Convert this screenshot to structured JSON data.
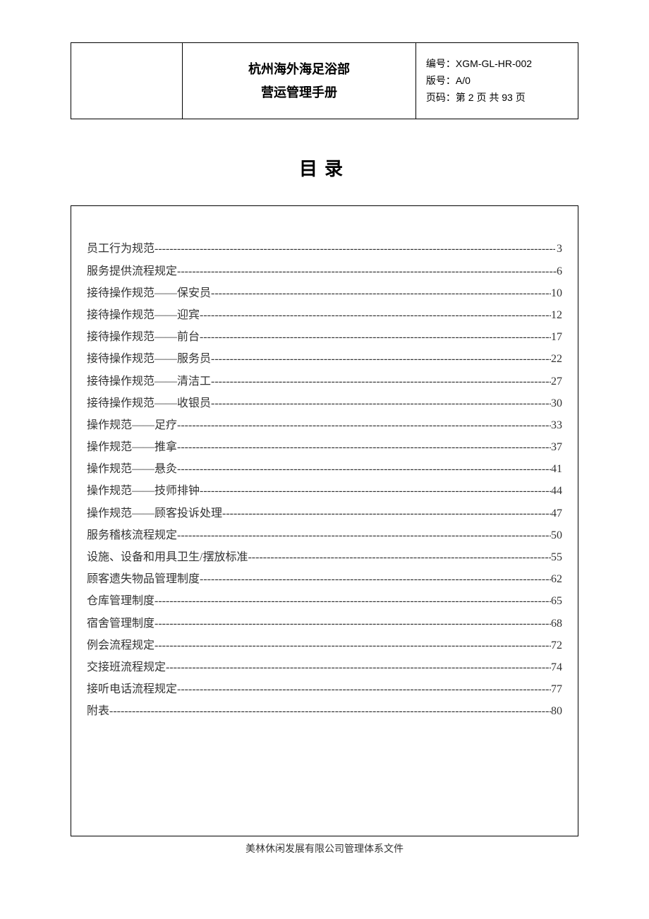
{
  "header": {
    "title_line1": "杭州海外海足浴部",
    "title_line2": "营运管理手册",
    "doc_no_label": "编号：",
    "doc_no_value": "XGM-GL-HR-002",
    "version_label": "版号：",
    "version_value": "A/0",
    "page_label": "页码：",
    "page_value": "第 2 页 共 93 页"
  },
  "toc": {
    "title": "目录",
    "items": [
      {
        "label": "员工行为规范",
        "page": " 3"
      },
      {
        "label": "服务提供流程规定",
        "page": "6"
      },
      {
        "label": "接待操作规范——保安员",
        "page": "10"
      },
      {
        "label": "接待操作规范——迎宾",
        "page": "12"
      },
      {
        "label": "接待操作规范——前台",
        "page": "17"
      },
      {
        "label": "接待操作规范——服务员",
        "page": "22"
      },
      {
        "label": "接待操作规范——清洁工",
        "page": "27"
      },
      {
        "label": "接待操作规范——收银员",
        "page": "30"
      },
      {
        "label": "操作规范——足疗",
        "page": "33"
      },
      {
        "label": "操作规范——推拿",
        "page": "37"
      },
      {
        "label": "操作规范——悬灸",
        "page": "41"
      },
      {
        "label": "操作规范——技师排钟",
        "page": "44"
      },
      {
        "label": "操作规范——顾客投诉处理",
        "page": "47"
      },
      {
        "label": "服务稽核流程规定",
        "page": "50"
      },
      {
        "label": "设施、设备和用具卫生/摆放标准",
        "page": "55"
      },
      {
        "label": "顾客遗失物品管理制度",
        "page": "62"
      },
      {
        "label": "仓库管理制度",
        "page": "65"
      },
      {
        "label": "宿舍管理制度",
        "page": "68"
      },
      {
        "label": "例会流程规定",
        "page": "72"
      },
      {
        "label": "交接班流程规定",
        "page": "74"
      },
      {
        "label": "接听电话流程规定",
        "page": "77"
      },
      {
        "label": "附表",
        "page": "80"
      }
    ]
  },
  "footer": "美林休闲发展有限公司管理体系文件",
  "style": {
    "page_bg": "#ffffff",
    "text_color": "#000000",
    "toc_text_color": "#333333",
    "border_color": "#000000",
    "title_fontsize_pt": 18,
    "meta_fontsize_pt": 14,
    "toc_title_fontsize_pt": 26,
    "toc_item_fontsize_pt": 16,
    "footer_fontsize_pt": 14
  }
}
